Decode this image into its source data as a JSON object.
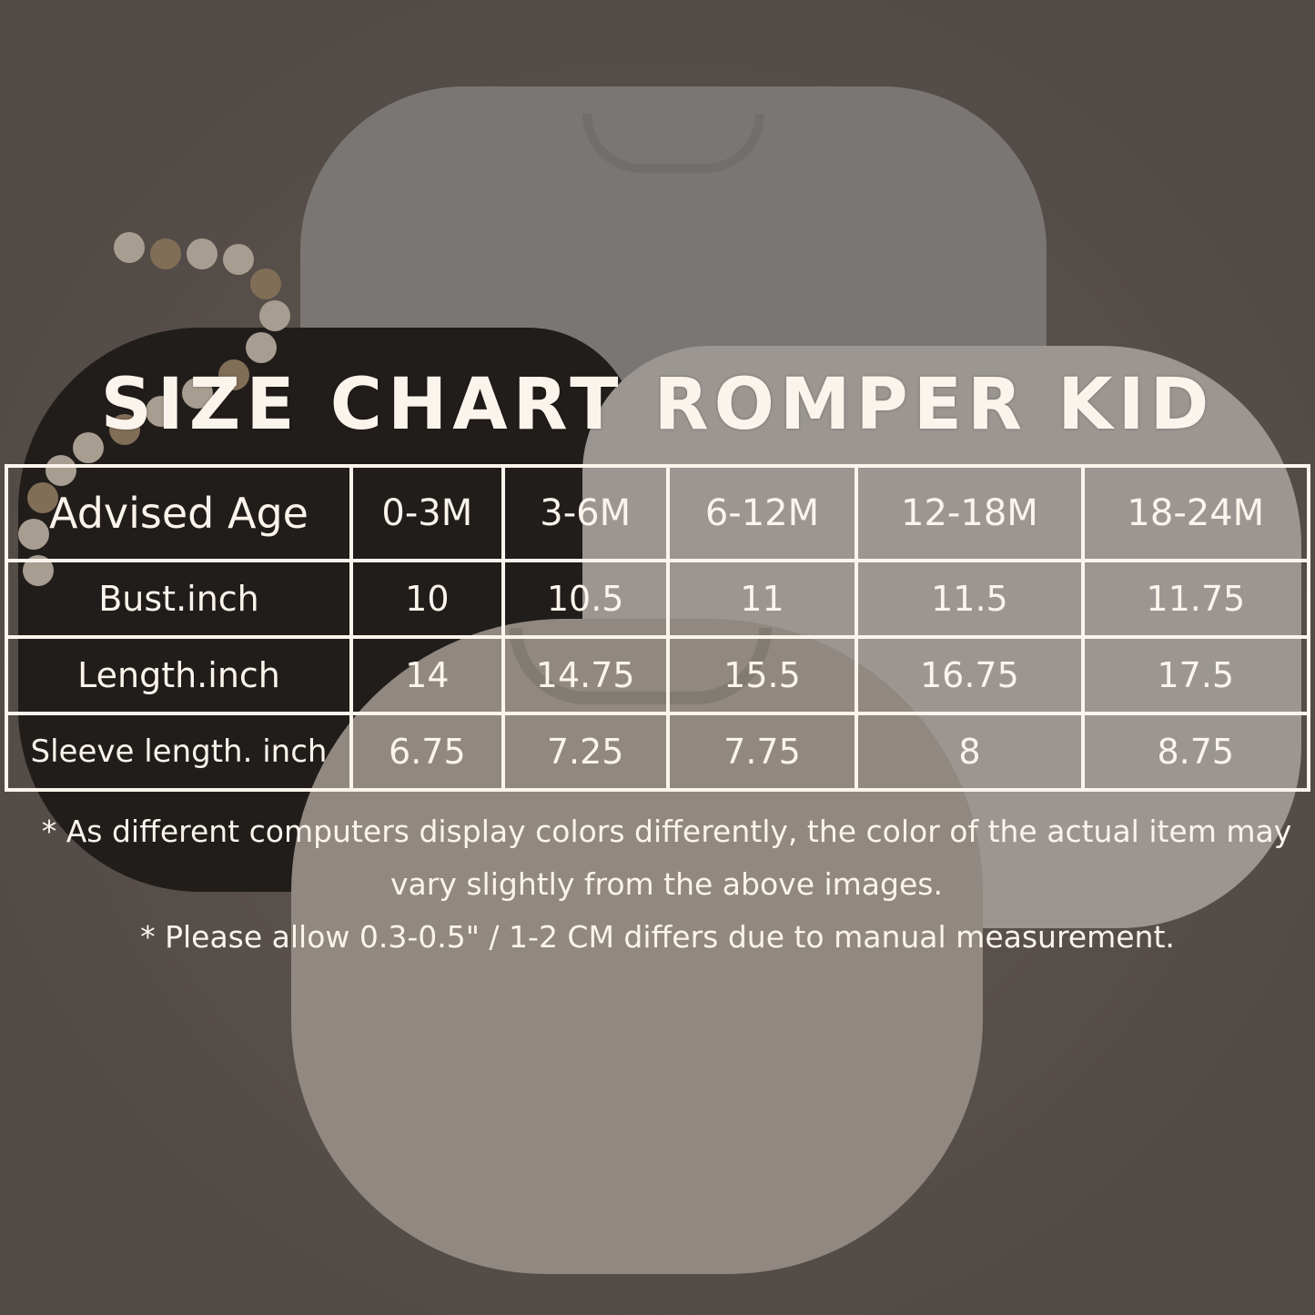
{
  "title": "SIZE CHART ROMPER KID",
  "table": {
    "header": {
      "label": "Advised Age",
      "sizes": [
        "0-3M",
        "3-6M",
        "6-12M",
        "12-18M",
        "18-24M"
      ]
    },
    "rows": [
      {
        "label": "Bust.inch",
        "values": [
          "10",
          "10.5",
          "11",
          "11.5",
          "11.75"
        ]
      },
      {
        "label": "Length.inch",
        "values": [
          "14",
          "14.75",
          "15.5",
          "16.75",
          "17.5"
        ]
      },
      {
        "label": "Sleeve length. inch",
        "values": [
          "6.75",
          "7.25",
          "7.75",
          "8",
          "8.75"
        ]
      }
    ]
  },
  "notes": [
    "* As different computers display colors differently, the color of the actual item may vary slightly from the above images.",
    "* Please allow 0.3-0.5\" / 1-2 CM differs due to manual measurement."
  ],
  "colors": {
    "text": "#fbf4ec",
    "background": "#6e655f"
  }
}
